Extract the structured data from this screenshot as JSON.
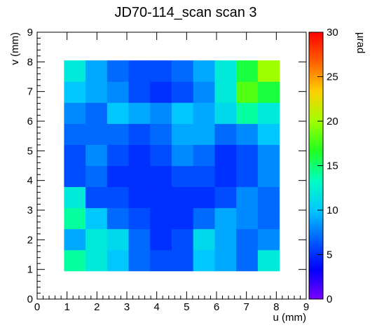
{
  "chart_data": {
    "type": "heatmap",
    "title": "JD70-114_scan scan 3",
    "x_label": "u (mm)",
    "y_label": "v (mm)",
    "z_label": "µrad",
    "xlim": [
      0,
      9
    ],
    "ylim": [
      0,
      9
    ],
    "zlim": [
      0,
      30
    ],
    "xticks": [
      0,
      1,
      2,
      3,
      4,
      5,
      6,
      7,
      8,
      9
    ],
    "yticks": [
      0,
      1,
      2,
      3,
      4,
      5,
      6,
      7,
      8,
      9
    ],
    "zticks": [
      0,
      5,
      10,
      15,
      20,
      25,
      30
    ],
    "xbins": [
      0.9,
      1.62,
      2.34,
      3.06,
      3.78,
      4.5,
      5.22,
      5.94,
      6.66,
      7.38,
      8.1
    ],
    "ybins": [
      0.95,
      1.66,
      2.37,
      3.08,
      3.79,
      4.5,
      5.21,
      5.92,
      6.63,
      7.34,
      8.05
    ],
    "z": [
      [
        14,
        12,
        10,
        7,
        6,
        6,
        10,
        9,
        7,
        12
      ],
      [
        9,
        12,
        11,
        7,
        5,
        6,
        11,
        9,
        7,
        8
      ],
      [
        14,
        10,
        7,
        6,
        5,
        5,
        7,
        9,
        8,
        7
      ],
      [
        12,
        6,
        6,
        5,
        5,
        5,
        5,
        6,
        8,
        7
      ],
      [
        6,
        7,
        5,
        5,
        5,
        6,
        6,
        5,
        6,
        8
      ],
      [
        6,
        8,
        6,
        5,
        6,
        8,
        7,
        5,
        6,
        8
      ],
      [
        7,
        7,
        7,
        6,
        7,
        9,
        9,
        7,
        8,
        10
      ],
      [
        8,
        7,
        10,
        9,
        8,
        10,
        9,
        11,
        14,
        12
      ],
      [
        10,
        9,
        8,
        6,
        5,
        6,
        8,
        12,
        18,
        16
      ],
      [
        12,
        9,
        7,
        6,
        6,
        7,
        9,
        12,
        16,
        20
      ]
    ],
    "palette": [
      "#7a00ff",
      "#0000ff",
      "#0060ff",
      "#00c8ff",
      "#00ffc0",
      "#20ff20",
      "#a0ff00",
      "#ffd000",
      "#ff6000",
      "#ff0000"
    ]
  }
}
